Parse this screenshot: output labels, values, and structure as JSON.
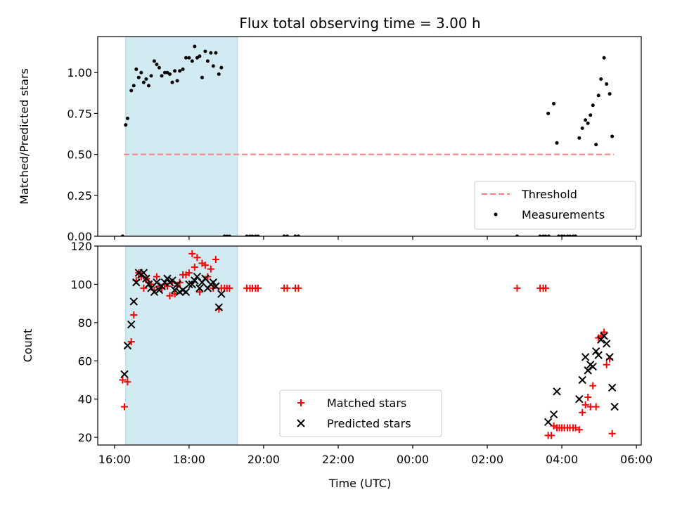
{
  "figure": {
    "title": "Flux total observing time = 3.00 h",
    "xlabel": "Time (UTC)"
  },
  "colors": {
    "shade": "#add8e6",
    "threshold": "#ff7f7f",
    "measurement": "#000000",
    "matched": "#ff0000",
    "predicted": "#000000"
  },
  "chart_data": [
    {
      "type": "scatter",
      "ylabel": "Matched/Predicted stars",
      "xlim_hours": [
        15.55,
        30.13
      ],
      "ylim": [
        0,
        1.22
      ],
      "yticks": [
        {
          "v": 0,
          "label": "0.00"
        },
        {
          "v": 0.25,
          "label": "0.25"
        },
        {
          "v": 0.5,
          "label": "0.50"
        },
        {
          "v": 0.75,
          "label": "0.75"
        },
        {
          "v": 1.0,
          "label": "1.00"
        }
      ],
      "xticks_shown": false,
      "shaded_interval": [
        "16:18",
        "19:18"
      ],
      "legend": {
        "position": "lower-right",
        "entries": [
          {
            "label": "Threshold",
            "kind": "dashed-line"
          },
          {
            "label": "Measurements",
            "kind": "dot"
          }
        ]
      },
      "threshold": {
        "name": "Threshold",
        "y": 0.5,
        "x_start": "16:15",
        "x_end": "05:24"
      },
      "series": [
        {
          "name": "Measurements",
          "points": [
            [
              "16:13",
              0.0
            ],
            [
              "16:18",
              0.68
            ],
            [
              "16:21",
              0.72
            ],
            [
              "16:27",
              0.89
            ],
            [
              "16:31",
              0.92
            ],
            [
              "16:35",
              1.02
            ],
            [
              "16:39",
              0.97
            ],
            [
              "16:43",
              1.0
            ],
            [
              "16:47",
              0.94
            ],
            [
              "16:51",
              0.96
            ],
            [
              "16:55",
              0.92
            ],
            [
              "16:59",
              0.98
            ],
            [
              "17:04",
              1.07
            ],
            [
              "17:08",
              1.05
            ],
            [
              "17:12",
              1.03
            ],
            [
              "17:16",
              0.98
            ],
            [
              "17:21",
              1.0
            ],
            [
              "17:25",
              1.0
            ],
            [
              "17:29",
              0.99
            ],
            [
              "17:33",
              0.94
            ],
            [
              "17:37",
              1.01
            ],
            [
              "17:41",
              0.95
            ],
            [
              "17:45",
              1.01
            ],
            [
              "17:50",
              1.02
            ],
            [
              "17:55",
              1.09
            ],
            [
              "18:00",
              1.09
            ],
            [
              "18:05",
              1.07
            ],
            [
              "18:09",
              1.16
            ],
            [
              "18:13",
              1.09
            ],
            [
              "18:17",
              1.1
            ],
            [
              "18:21",
              0.97
            ],
            [
              "18:26",
              1.13
            ],
            [
              "18:30",
              1.07
            ],
            [
              "18:35",
              1.12
            ],
            [
              "18:39",
              1.04
            ],
            [
              "18:43",
              1.12
            ],
            [
              "18:48",
              0.99
            ],
            [
              "18:52",
              1.03
            ],
            [
              "18:57",
              0.0
            ],
            [
              "19:01",
              0.0
            ],
            [
              "19:05",
              0.0
            ],
            [
              "19:33",
              0.0
            ],
            [
              "19:38",
              0.0
            ],
            [
              "19:42",
              0.0
            ],
            [
              "19:47",
              0.0
            ],
            [
              "19:51",
              0.0
            ],
            [
              "20:33",
              0.0
            ],
            [
              "20:38",
              0.0
            ],
            [
              "20:51",
              0.0
            ],
            [
              "20:56",
              0.0
            ],
            [
              "02:48",
              0.0
            ],
            [
              "03:25",
              0.0
            ],
            [
              "03:30",
              0.0
            ],
            [
              "03:34",
              0.0
            ],
            [
              "03:39",
              0.0
            ],
            [
              "03:38",
              0.75
            ],
            [
              "03:47",
              0.81
            ],
            [
              "03:52",
              0.57
            ],
            [
              "03:55",
              0.0
            ],
            [
              "04:00",
              0.0
            ],
            [
              "04:04",
              0.0
            ],
            [
              "04:09",
              0.0
            ],
            [
              "04:13",
              0.0
            ],
            [
              "04:18",
              0.0
            ],
            [
              "04:22",
              0.0
            ],
            [
              "04:28",
              0.6
            ],
            [
              "04:33",
              0.66
            ],
            [
              "04:38",
              0.71
            ],
            [
              "04:42",
              0.69
            ],
            [
              "04:46",
              0.74
            ],
            [
              "04:50",
              0.8
            ],
            [
              "04:55",
              0.56
            ],
            [
              "04:59",
              0.86
            ],
            [
              "05:03",
              0.96
            ],
            [
              "05:08",
              1.09
            ],
            [
              "05:12",
              0.93
            ],
            [
              "05:17",
              0.87
            ],
            [
              "05:21",
              0.61
            ]
          ]
        }
      ]
    },
    {
      "type": "scatter",
      "ylabel": "Count",
      "xlim_hours": [
        15.55,
        30.13
      ],
      "ylim": [
        16,
        120
      ],
      "yticks": [
        {
          "v": 20,
          "label": "20"
        },
        {
          "v": 40,
          "label": "40"
        },
        {
          "v": 60,
          "label": "60"
        },
        {
          "v": 80,
          "label": "80"
        },
        {
          "v": 100,
          "label": "100"
        },
        {
          "v": 120,
          "label": "120"
        }
      ],
      "xticks": [
        {
          "v": 16,
          "label": "16:00"
        },
        {
          "v": 18,
          "label": "18:00"
        },
        {
          "v": 20,
          "label": "20:00"
        },
        {
          "v": 22,
          "label": "22:00"
        },
        {
          "v": 24,
          "label": "00:00"
        },
        {
          "v": 26,
          "label": "02:00"
        },
        {
          "v": 28,
          "label": "04:00"
        },
        {
          "v": 30,
          "label": "06:00"
        }
      ],
      "shaded_interval": [
        "16:18",
        "19:18"
      ],
      "legend": {
        "position": "lower-center",
        "entries": [
          {
            "label": "Matched stars",
            "kind": "plus"
          },
          {
            "label": "Predicted stars",
            "kind": "x"
          }
        ]
      },
      "series": [
        {
          "name": "Matched stars",
          "marker": "plus",
          "points": [
            [
              "16:13",
              50
            ],
            [
              "16:16",
              36
            ],
            [
              "16:21",
              49
            ],
            [
              "16:27",
              70
            ],
            [
              "16:31",
              84
            ],
            [
              "16:35",
              102
            ],
            [
              "16:39",
              106
            ],
            [
              "16:43",
              104
            ],
            [
              "16:47",
              98
            ],
            [
              "16:51",
              103
            ],
            [
              "16:55",
              101
            ],
            [
              "16:59",
              100
            ],
            [
              "17:04",
              97
            ],
            [
              "17:08",
              104
            ],
            [
              "17:12",
              99
            ],
            [
              "17:16",
              98
            ],
            [
              "17:21",
              100
            ],
            [
              "17:25",
              99
            ],
            [
              "17:29",
              94
            ],
            [
              "17:33",
              101
            ],
            [
              "17:37",
              95
            ],
            [
              "17:41",
              99
            ],
            [
              "17:45",
              101
            ],
            [
              "17:50",
              105
            ],
            [
              "17:55",
              105
            ],
            [
              "18:00",
              106
            ],
            [
              "18:05",
              116
            ],
            [
              "18:09",
              109
            ],
            [
              "18:13",
              114
            ],
            [
              "18:17",
              96
            ],
            [
              "18:21",
              111
            ],
            [
              "18:26",
              110
            ],
            [
              "18:30",
              104
            ],
            [
              "18:35",
              108
            ],
            [
              "18:39",
              98
            ],
            [
              "18:43",
              113
            ],
            [
              "18:48",
              87
            ],
            [
              "18:52",
              98
            ],
            [
              "18:57",
              98
            ],
            [
              "19:01",
              98
            ],
            [
              "19:05",
              98
            ],
            [
              "19:33",
              98
            ],
            [
              "19:38",
              98
            ],
            [
              "19:42",
              98
            ],
            [
              "19:47",
              98
            ],
            [
              "19:51",
              98
            ],
            [
              "20:33",
              98
            ],
            [
              "20:38",
              98
            ],
            [
              "20:51",
              98
            ],
            [
              "20:56",
              98
            ],
            [
              "02:48",
              98
            ],
            [
              "03:25",
              98
            ],
            [
              "03:30",
              98
            ],
            [
              "03:34",
              98
            ],
            [
              "03:38",
              21
            ],
            [
              "03:43",
              21
            ],
            [
              "03:47",
              26
            ],
            [
              "03:52",
              25
            ],
            [
              "03:56",
              25
            ],
            [
              "04:00",
              25
            ],
            [
              "04:04",
              25
            ],
            [
              "04:09",
              25
            ],
            [
              "04:13",
              25
            ],
            [
              "04:18",
              25
            ],
            [
              "04:22",
              25
            ],
            [
              "04:28",
              24
            ],
            [
              "04:33",
              33
            ],
            [
              "04:38",
              37
            ],
            [
              "04:42",
              41
            ],
            [
              "04:46",
              36
            ],
            [
              "04:50",
              47
            ],
            [
              "04:55",
              36
            ],
            [
              "04:59",
              72
            ],
            [
              "05:03",
              73
            ],
            [
              "05:08",
              75
            ],
            [
              "05:12",
              58
            ],
            [
              "05:17",
              61
            ],
            [
              "05:21",
              22
            ]
          ]
        },
        {
          "name": "Predicted stars",
          "marker": "x",
          "points": [
            [
              "16:16",
              53
            ],
            [
              "16:21",
              68
            ],
            [
              "16:27",
              79
            ],
            [
              "16:31",
              91
            ],
            [
              "16:35",
              101
            ],
            [
              "16:39",
              106
            ],
            [
              "16:43",
              105
            ],
            [
              "16:47",
              106
            ],
            [
              "16:51",
              103
            ],
            [
              "16:55",
              100
            ],
            [
              "16:59",
              98
            ],
            [
              "17:04",
              96
            ],
            [
              "17:08",
              101
            ],
            [
              "17:12",
              97
            ],
            [
              "17:16",
              99
            ],
            [
              "17:21",
              101
            ],
            [
              "17:25",
              103
            ],
            [
              "17:29",
              101
            ],
            [
              "17:33",
              102
            ],
            [
              "17:37",
              97
            ],
            [
              "17:41",
              100
            ],
            [
              "17:45",
              96
            ],
            [
              "17:50",
              97
            ],
            [
              "17:55",
              96
            ],
            [
              "18:00",
              100
            ],
            [
              "18:05",
              100
            ],
            [
              "18:09",
              102
            ],
            [
              "18:13",
              104
            ],
            [
              "18:17",
              98
            ],
            [
              "18:21",
              101
            ],
            [
              "18:26",
              103
            ],
            [
              "18:30",
              98
            ],
            [
              "18:35",
              100
            ],
            [
              "18:39",
              101
            ],
            [
              "18:43",
              99
            ],
            [
              "18:48",
              88
            ],
            [
              "18:52",
              95
            ],
            [
              "03:38",
              28
            ],
            [
              "03:47",
              32
            ],
            [
              "03:52",
              44
            ],
            [
              "04:28",
              40
            ],
            [
              "04:33",
              50
            ],
            [
              "04:38",
              62
            ],
            [
              "04:42",
              55
            ],
            [
              "04:46",
              58
            ],
            [
              "04:50",
              57
            ],
            [
              "04:55",
              65
            ],
            [
              "04:59",
              63
            ],
            [
              "05:03",
              71
            ],
            [
              "05:08",
              73
            ],
            [
              "05:12",
              69
            ],
            [
              "05:17",
              62
            ],
            [
              "05:21",
              46
            ],
            [
              "05:25",
              36
            ]
          ]
        }
      ]
    }
  ]
}
